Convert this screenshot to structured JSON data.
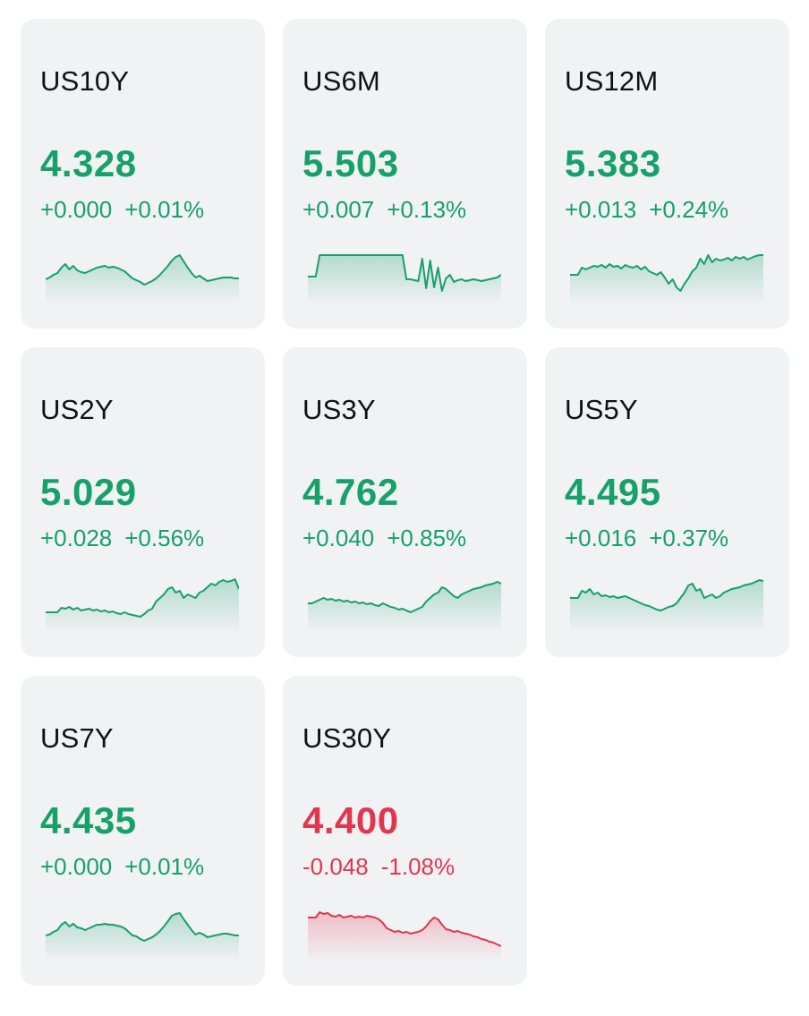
{
  "colors": {
    "up": "#16a06a",
    "down": "#e0364e"
  },
  "cards": [
    {
      "symbol": "US10Y",
      "price": "4.328",
      "change": "+0.000",
      "percent": "+0.01%",
      "direction": "up",
      "spark": [
        35,
        33,
        30,
        28,
        22,
        18,
        24,
        20,
        25,
        27,
        28,
        26,
        24,
        22,
        21,
        20,
        22,
        21,
        22,
        24,
        26,
        30,
        34,
        36,
        38,
        41,
        39,
        37,
        34,
        30,
        25,
        20,
        14,
        10,
        8,
        15,
        22,
        28,
        33,
        31,
        34,
        37,
        36,
        35,
        34,
        33,
        33,
        33,
        34,
        34
      ]
    },
    {
      "symbol": "US6M",
      "price": "5.503",
      "change": "+0.007",
      "percent": "+0.13%",
      "direction": "up",
      "spark": [
        32,
        32,
        32,
        8,
        8,
        8,
        8,
        8,
        8,
        8,
        8,
        8,
        8,
        8,
        8,
        8,
        8,
        8,
        8,
        8,
        8,
        8,
        8,
        8,
        8,
        35,
        35,
        36,
        37,
        12,
        45,
        14,
        44,
        22,
        48,
        34,
        30,
        38,
        36,
        35,
        37,
        36,
        35,
        36,
        37,
        36,
        35,
        34,
        33,
        30
      ]
    },
    {
      "symbol": "US12M",
      "price": "5.383",
      "change": "+0.013",
      "percent": "+0.24%",
      "direction": "up",
      "spark": [
        30,
        30,
        30,
        22,
        24,
        22,
        20,
        21,
        19,
        22,
        18,
        21,
        20,
        23,
        19,
        21,
        22,
        20,
        24,
        21,
        26,
        28,
        30,
        27,
        33,
        40,
        35,
        44,
        48,
        40,
        34,
        26,
        22,
        12,
        18,
        8,
        16,
        12,
        14,
        13,
        11,
        14,
        10,
        12,
        10,
        13,
        11,
        9,
        8,
        8
      ]
    },
    {
      "symbol": "US2Y",
      "price": "5.029",
      "change": "+0.028",
      "percent": "+0.56%",
      "direction": "up",
      "spark": [
        40,
        40,
        40,
        40,
        35,
        36,
        34,
        37,
        35,
        38,
        37,
        36,
        38,
        37,
        39,
        38,
        40,
        39,
        41,
        42,
        40,
        42,
        43,
        44,
        45,
        42,
        38,
        36,
        28,
        24,
        20,
        14,
        12,
        18,
        16,
        24,
        20,
        22,
        24,
        18,
        16,
        12,
        8,
        10,
        6,
        4,
        6,
        5,
        3,
        14
      ]
    },
    {
      "symbol": "US3Y",
      "price": "4.762",
      "change": "+0.040",
      "percent": "+0.85%",
      "direction": "up",
      "spark": [
        30,
        30,
        28,
        26,
        24,
        26,
        25,
        27,
        26,
        28,
        27,
        29,
        28,
        30,
        29,
        31,
        30,
        32,
        33,
        30,
        32,
        34,
        35,
        37,
        36,
        38,
        40,
        38,
        36,
        34,
        28,
        24,
        20,
        18,
        12,
        14,
        18,
        22,
        24,
        20,
        18,
        16,
        14,
        13,
        12,
        10,
        9,
        8,
        6,
        8
      ]
    },
    {
      "symbol": "US5Y",
      "price": "4.495",
      "change": "+0.016",
      "percent": "+0.37%",
      "direction": "up",
      "spark": [
        24,
        24,
        24,
        16,
        18,
        14,
        20,
        18,
        22,
        21,
        23,
        22,
        24,
        23,
        22,
        24,
        26,
        28,
        30,
        32,
        33,
        35,
        37,
        38,
        36,
        34,
        33,
        30,
        24,
        18,
        10,
        8,
        16,
        14,
        24,
        22,
        20,
        24,
        22,
        18,
        16,
        14,
        13,
        12,
        10,
        9,
        8,
        6,
        4,
        5
      ]
    },
    {
      "symbol": "US7Y",
      "price": "4.435",
      "change": "+0.000",
      "percent": "+0.01%",
      "direction": "up",
      "spark": [
        34,
        33,
        30,
        28,
        22,
        19,
        24,
        21,
        25,
        26,
        28,
        26,
        24,
        22,
        22,
        21,
        22,
        22,
        23,
        24,
        26,
        30,
        34,
        35,
        38,
        40,
        38,
        36,
        33,
        29,
        24,
        18,
        12,
        10,
        9,
        16,
        22,
        28,
        33,
        31,
        33,
        36,
        35,
        34,
        33,
        32,
        32,
        33,
        34,
        34
      ]
    },
    {
      "symbol": "US30Y",
      "price": "4.400",
      "change": "-0.048",
      "percent": "-1.08%",
      "direction": "down",
      "spark": [
        14,
        14,
        14,
        8,
        10,
        9,
        12,
        13,
        11,
        14,
        13,
        12,
        14,
        13,
        14,
        12,
        13,
        14,
        16,
        20,
        26,
        28,
        30,
        29,
        31,
        30,
        32,
        31,
        30,
        28,
        24,
        18,
        14,
        16,
        22,
        27,
        28,
        30,
        29,
        31,
        32,
        33,
        35,
        36,
        38,
        39,
        41,
        42,
        44,
        46
      ]
    }
  ]
}
